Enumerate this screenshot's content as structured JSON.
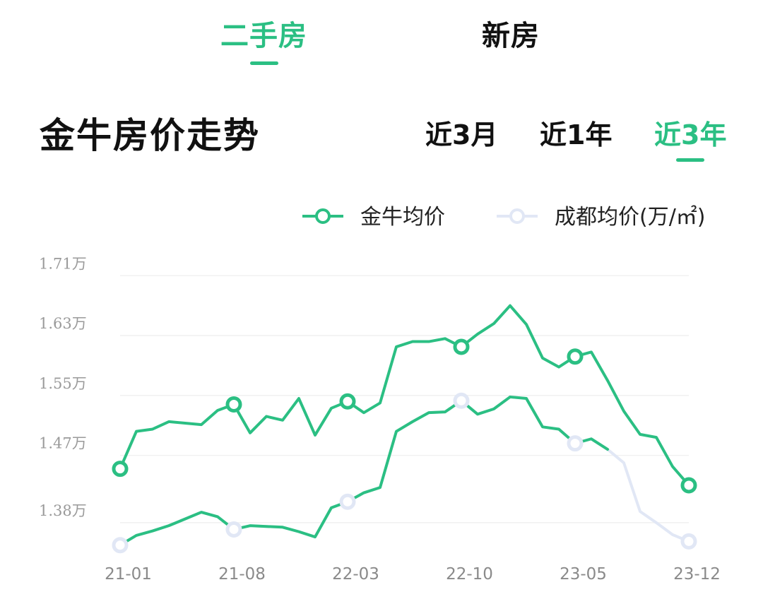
{
  "top_tabs": {
    "second_hand": "二手房",
    "new_house": "新房"
  },
  "title": "金牛房价走势",
  "ranges": {
    "m3": "近3月",
    "y1": "近1年",
    "y3": "近3年"
  },
  "colors": {
    "accent": "#2bbf83",
    "secondary_series": "#e1e7f5"
  },
  "chart_data": {
    "type": "line",
    "ylim": [
      1.345,
      1.715
    ],
    "yticks": [
      {
        "value": 1.71,
        "label": "1.71万"
      },
      {
        "value": 1.63,
        "label": "1.63万"
      },
      {
        "value": 1.55,
        "label": "1.55万"
      },
      {
        "value": 1.47,
        "label": "1.47万"
      },
      {
        "value": 1.38,
        "label": "1.38万"
      }
    ],
    "xticks": [
      {
        "index": 1,
        "label": "21-01"
      },
      {
        "index": 8,
        "label": "21-08"
      },
      {
        "index": 15,
        "label": "22-03"
      },
      {
        "index": 22,
        "label": "22-10"
      },
      {
        "index": 29,
        "label": "23-05"
      },
      {
        "index": 36,
        "label": "23-12"
      }
    ],
    "unit_note": "(万/㎡)",
    "series": [
      {
        "name": "金牛均价",
        "color": "#2bbf83",
        "values": [
          1.452,
          1.502,
          1.505,
          1.515,
          1.513,
          1.511,
          1.53,
          1.538,
          1.5,
          1.522,
          1.517,
          1.546,
          1.497,
          1.533,
          1.542,
          1.527,
          1.54,
          1.615,
          1.622,
          1.622,
          1.626,
          1.615,
          1.632,
          1.646,
          1.67,
          1.645,
          1.6,
          1.588,
          1.602,
          1.608,
          1.57,
          1.529,
          1.498,
          1.494,
          1.455,
          1.43
        ],
        "markers": [
          0,
          7,
          14,
          21,
          28,
          35
        ]
      },
      {
        "name": "成都均价",
        "color": "#e1e7f5",
        "values": [
          1.35,
          1.363,
          1.369,
          1.376,
          1.385,
          1.394,
          1.388,
          1.371,
          1.376,
          1.375,
          1.374,
          1.368,
          1.361,
          1.4,
          1.408,
          1.42,
          1.427,
          1.502,
          1.515,
          1.527,
          1.528,
          1.543,
          1.525,
          1.532,
          1.548,
          1.546,
          1.508,
          1.505,
          1.486,
          1.492,
          1.478,
          1.46,
          1.395,
          1.38,
          1.364,
          1.355
        ],
        "markers": [
          0,
          7,
          14,
          21,
          28,
          35
        ],
        "highlight_end_index": 30
      }
    ]
  }
}
